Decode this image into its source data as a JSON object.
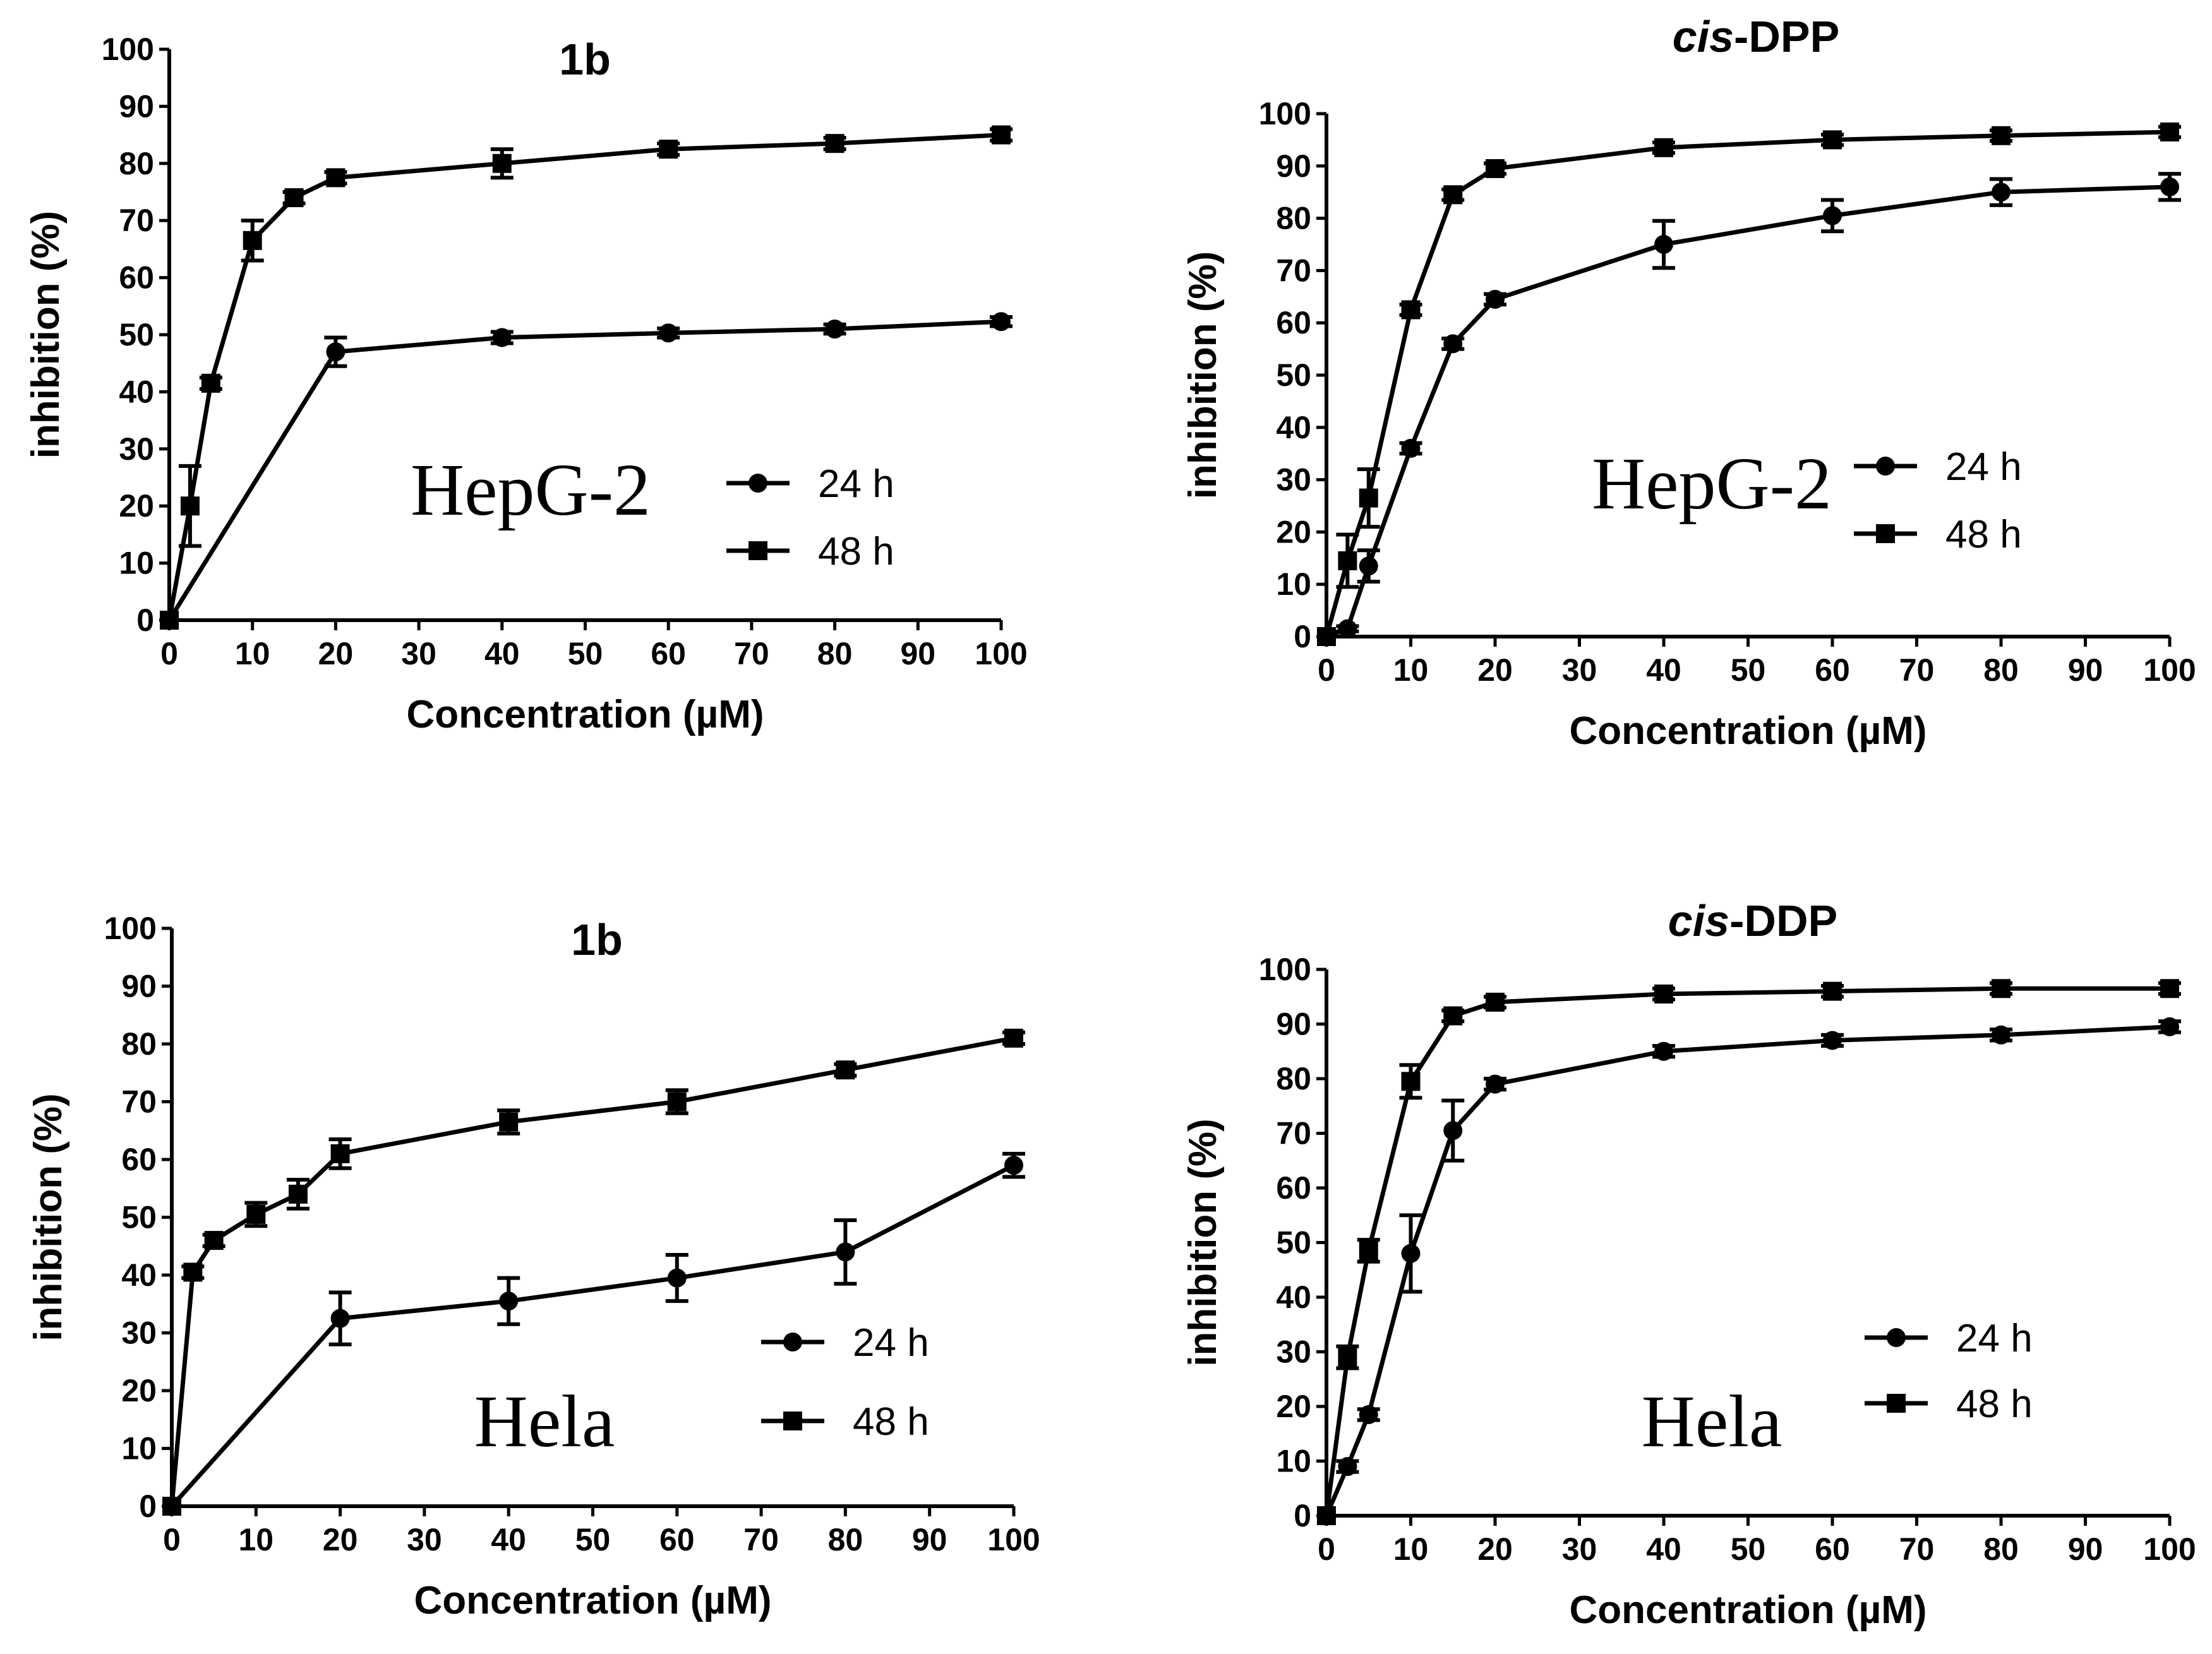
{
  "figure": {
    "panels": 4
  },
  "chart_data": [
    {
      "type": "line",
      "title": "1b",
      "title_italic_prefix": "",
      "title_rest": "1b",
      "annotation": "HepG-2",
      "xlabel": "Concentration (µM)",
      "ylabel": "inhibition (%)",
      "xlim": [
        0,
        100
      ],
      "ylim": [
        0,
        100
      ],
      "xticks": [
        0,
        10,
        20,
        30,
        40,
        50,
        60,
        70,
        80,
        90,
        100
      ],
      "yticks": [
        0,
        10,
        20,
        30,
        40,
        50,
        60,
        70,
        80,
        90,
        100
      ],
      "legend_position": "lower-right",
      "series": [
        {
          "name": "24 h",
          "marker": "circle",
          "x": [
            0,
            20,
            40,
            60,
            80,
            100
          ],
          "y": [
            0,
            47,
            49.5,
            50.3,
            51,
            52.3
          ],
          "err": [
            0,
            2.5,
            1,
            0.8,
            0.8,
            0.8
          ]
        },
        {
          "name": "48 h",
          "marker": "square",
          "x": [
            0,
            2.5,
            5,
            10,
            15,
            20,
            40,
            60,
            80,
            100
          ],
          "y": [
            0,
            20,
            41.5,
            66.5,
            74,
            77.5,
            80,
            82.5,
            83.5,
            85
          ],
          "err": [
            0,
            7,
            1,
            3.5,
            1,
            1,
            2.5,
            1,
            1,
            1
          ]
        }
      ]
    },
    {
      "type": "line",
      "title": "cis-DPP",
      "title_italic_prefix": "cis",
      "title_rest": "-DPP",
      "annotation": "HepG-2",
      "xlabel": "Concentration (µM)",
      "ylabel": "inhibition (%)",
      "xlim": [
        0,
        100
      ],
      "ylim": [
        0,
        100
      ],
      "xticks": [
        0,
        10,
        20,
        30,
        40,
        50,
        60,
        70,
        80,
        90,
        100
      ],
      "yticks": [
        0,
        10,
        20,
        30,
        40,
        50,
        60,
        70,
        80,
        90,
        100
      ],
      "legend_position": "lower-right",
      "series": [
        {
          "name": "24 h",
          "marker": "circle",
          "x": [
            0,
            2.5,
            5,
            10,
            15,
            20,
            40,
            60,
            80,
            100
          ],
          "y": [
            0,
            1.5,
            13.5,
            36,
            56,
            64.5,
            75,
            80.5,
            85,
            86
          ],
          "err": [
            0,
            0.5,
            3,
            1,
            1,
            1,
            4.5,
            3,
            2.5,
            2.5
          ]
        },
        {
          "name": "48 h",
          "marker": "square",
          "x": [
            0,
            2.5,
            5,
            10,
            15,
            20,
            40,
            60,
            80,
            100
          ],
          "y": [
            0,
            14.5,
            26.5,
            62.5,
            84.5,
            89.5,
            93.5,
            95,
            95.8,
            96.5
          ],
          "err": [
            0,
            5,
            5.5,
            1,
            1,
            1,
            1,
            1,
            1,
            1
          ]
        }
      ]
    },
    {
      "type": "line",
      "title": "1b",
      "title_italic_prefix": "",
      "title_rest": "1b",
      "annotation": "Hela",
      "xlabel": "Concentration (µM)",
      "ylabel": "inhibition (%)",
      "xlim": [
        0,
        100
      ],
      "ylim": [
        0,
        100
      ],
      "xticks": [
        0,
        10,
        20,
        30,
        40,
        50,
        60,
        70,
        80,
        90,
        100
      ],
      "yticks": [
        0,
        10,
        20,
        30,
        40,
        50,
        60,
        70,
        80,
        90,
        100
      ],
      "legend_position": "lower-right",
      "series": [
        {
          "name": "24 h",
          "marker": "circle",
          "x": [
            0,
            20,
            40,
            60,
            80,
            100
          ],
          "y": [
            0,
            32.5,
            35.5,
            39.5,
            44,
            59
          ],
          "err": [
            0,
            4.5,
            4,
            4,
            5.5,
            2
          ]
        },
        {
          "name": "48 h",
          "marker": "square",
          "x": [
            0,
            2.5,
            5,
            10,
            15,
            20,
            40,
            60,
            80,
            100
          ],
          "y": [
            0,
            40.5,
            46,
            50.5,
            54,
            61,
            66.5,
            70,
            75.5,
            81
          ],
          "err": [
            0,
            1,
            1,
            2,
            2.5,
            2.5,
            2,
            2,
            1,
            1
          ]
        }
      ]
    },
    {
      "type": "line",
      "title": "cis-DDP",
      "title_italic_prefix": "cis",
      "title_rest": "-DDP",
      "annotation": "Hela",
      "xlabel": "Concentration (µM)",
      "ylabel": "inhibition (%)",
      "xlim": [
        0,
        100
      ],
      "ylim": [
        0,
        100
      ],
      "xticks": [
        0,
        10,
        20,
        30,
        40,
        50,
        60,
        70,
        80,
        90,
        100
      ],
      "yticks": [
        0,
        10,
        20,
        30,
        40,
        50,
        60,
        70,
        80,
        90,
        100
      ],
      "legend_position": "lower-right",
      "series": [
        {
          "name": "24 h",
          "marker": "circle",
          "x": [
            0,
            2.5,
            5,
            10,
            15,
            20,
            40,
            60,
            80,
            100
          ],
          "y": [
            0,
            9,
            18.5,
            48,
            70.5,
            79,
            85,
            87,
            88,
            89.5
          ],
          "err": [
            0,
            1,
            1,
            7,
            5.5,
            1,
            1,
            1,
            1,
            1
          ]
        },
        {
          "name": "48 h",
          "marker": "square",
          "x": [
            0,
            2.5,
            5,
            10,
            15,
            20,
            40,
            60,
            80,
            100
          ],
          "y": [
            0,
            29,
            48.5,
            79.5,
            91.5,
            94,
            95.5,
            96,
            96.5,
            96.5
          ],
          "err": [
            0,
            2,
            2,
            3,
            1,
            1,
            1,
            1,
            1,
            1
          ]
        }
      ]
    }
  ]
}
